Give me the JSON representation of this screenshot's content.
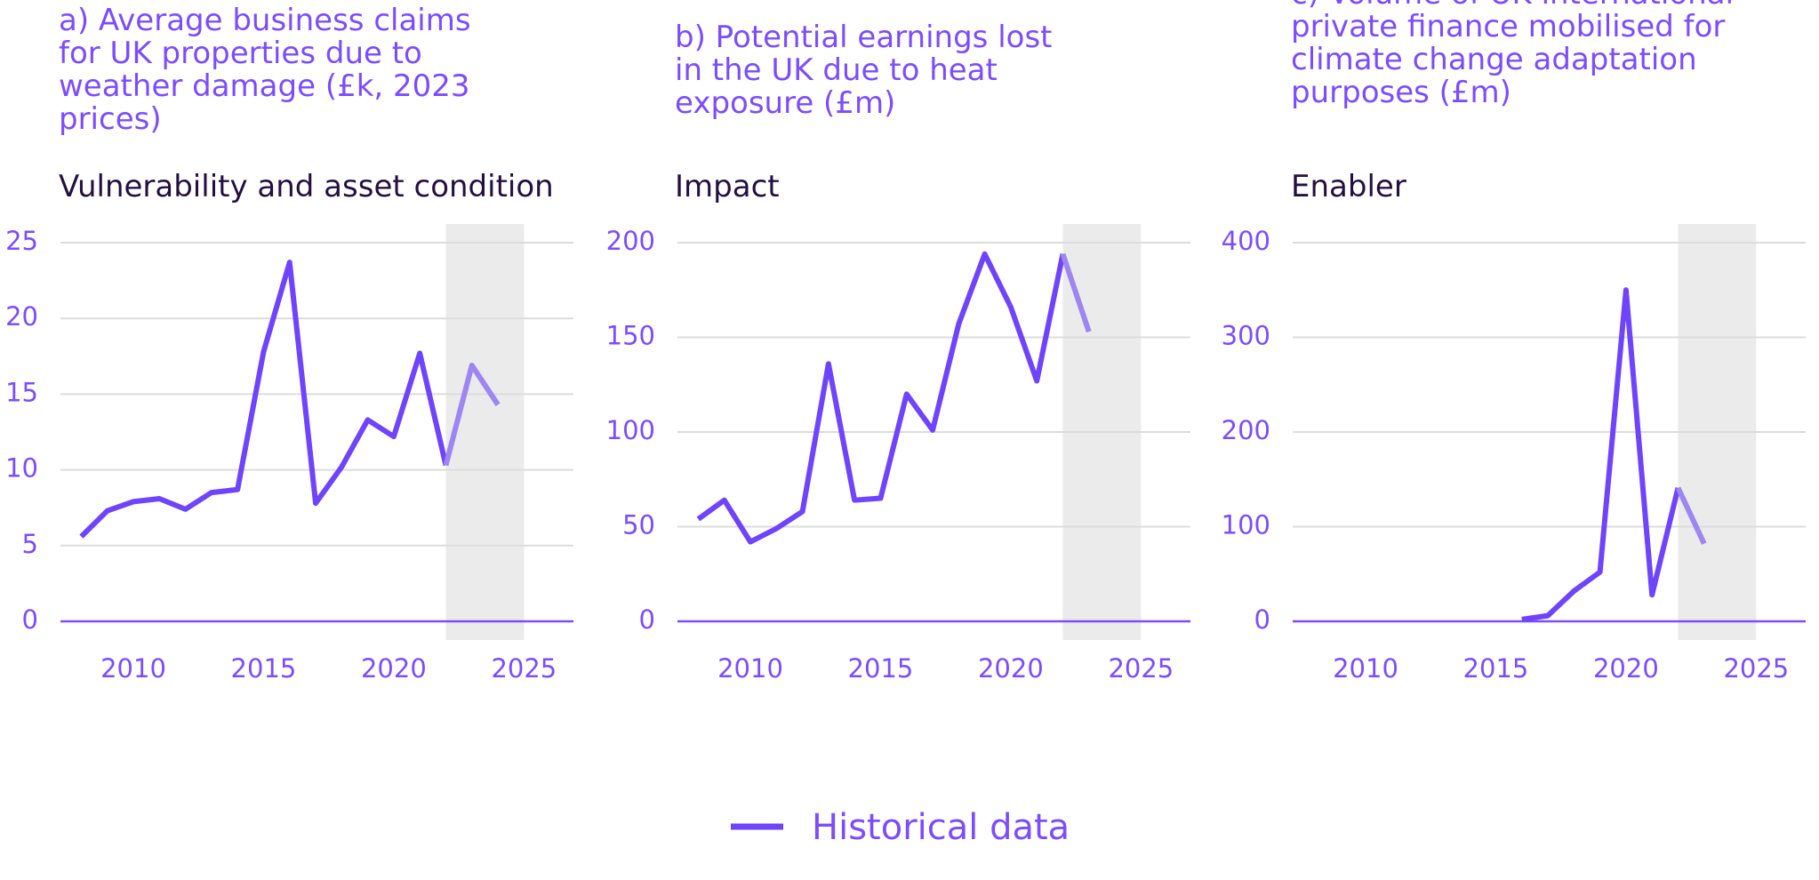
{
  "chart_data": [
    {
      "type": "line",
      "title": "a) Average business claims for UK properties due to weather damage (£k, 2023 prices)",
      "subtitle": "Vulnerability and asset condition",
      "x": [
        2008,
        2009,
        2010,
        2011,
        2012,
        2013,
        2014,
        2015,
        2016,
        2017,
        2018,
        2019,
        2020,
        2021,
        2022,
        2023,
        2024
      ],
      "series": [
        {
          "name": "Historical data",
          "color": "#6e44ff",
          "values": [
            5.6,
            7.3,
            7.9,
            8.1,
            7.4,
            8.5,
            8.7,
            17.8,
            23.7,
            7.8,
            10.2,
            13.3,
            12.2,
            17.7,
            10.3,
            null,
            null
          ]
        },
        {
          "color": "#9d85f2",
          "values": [
            null,
            null,
            null,
            null,
            null,
            null,
            null,
            null,
            null,
            null,
            null,
            null,
            null,
            null,
            10.3,
            16.9,
            14.3
          ]
        }
      ],
      "xlim": [
        2007.2,
        2026.9
      ],
      "xticks": [
        2010,
        2015,
        2020,
        2025
      ],
      "ylim": [
        0,
        25
      ],
      "yticks": [
        0,
        5,
        10,
        15,
        20,
        25
      ],
      "grid": true,
      "shaded_x": [
        2022,
        2025
      ]
    },
    {
      "type": "line",
      "title": "b) Potential earnings lost in the UK due to heat exposure (£m)",
      "subtitle": "Impact",
      "x": [
        2008,
        2009,
        2010,
        2011,
        2012,
        2013,
        2014,
        2015,
        2016,
        2017,
        2018,
        2019,
        2020,
        2021,
        2022,
        2023
      ],
      "series": [
        {
          "color": "#6e44ff",
          "values": [
            54,
            64,
            42,
            49,
            58,
            136,
            64,
            65,
            120,
            101,
            157,
            194,
            166,
            127,
            194,
            null
          ]
        },
        {
          "color": "#9d85f2",
          "values": [
            null,
            null,
            null,
            null,
            null,
            null,
            null,
            null,
            null,
            null,
            null,
            null,
            null,
            null,
            194,
            153
          ]
        }
      ],
      "xlim": [
        2007.2,
        2026.9
      ],
      "xticks": [
        2010,
        2015,
        2020,
        2025
      ],
      "ylim": [
        0,
        200
      ],
      "yticks": [
        0,
        50,
        100,
        150,
        200
      ],
      "grid": true,
      "shaded_x": [
        2022,
        2025
      ]
    },
    {
      "type": "line",
      "title": "c) Volume of UK international private finance mobilised for climate change adaptation purposes (£m)",
      "subtitle": "Enabler",
      "x": [
        2016,
        2017,
        2018,
        2019,
        2020,
        2021,
        2022,
        2023
      ],
      "series": [
        {
          "color": "#6e44ff",
          "values": [
            2,
            6,
            32,
            52,
            350,
            28,
            141,
            null
          ]
        },
        {
          "color": "#9d85f2",
          "values": [
            null,
            null,
            null,
            null,
            null,
            null,
            141,
            82
          ]
        }
      ],
      "xlim": [
        2007.2,
        2026.9
      ],
      "xticks": [
        2010,
        2015,
        2020,
        2025
      ],
      "ylim": [
        0,
        400
      ],
      "yticks": [
        0,
        100,
        200,
        300,
        400
      ],
      "grid": true,
      "shaded_x": [
        2022,
        2025
      ]
    }
  ]
}
